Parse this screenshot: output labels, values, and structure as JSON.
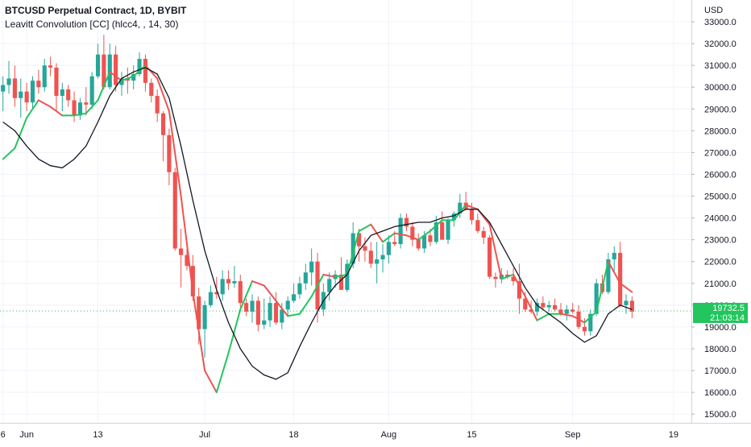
{
  "header": {
    "symbol": "BTCUSD Perpetual Contract, 1D, BYBIT",
    "indicator": "Leavitt Convolution [CC] (hlcc4, , 14, 30)"
  },
  "price_badge": {
    "price": "19732.5",
    "countdown": "21:03:14"
  },
  "colors": {
    "up": "#26a69a",
    "up_bright": "#22c55e",
    "down": "#ef5350",
    "down_dark": "#8b0d3a",
    "slow_line": "#131722",
    "badge": "#22c55e"
  },
  "chart_data": {
    "type": "line",
    "title": "BTCUSD Perpetual Contract, 1D, BYBIT",
    "ylabel": "USD",
    "ylim": [
      14600,
      34000
    ],
    "y_ticks": [
      "33000.0",
      "32000.0",
      "31000.0",
      "30000.0",
      "29000.0",
      "28000.0",
      "27000.0",
      "26000.0",
      "25000.0",
      "24000.0",
      "23000.0",
      "22000.0",
      "21000.0",
      "20000.0",
      "19000.0",
      "18000.0",
      "17000.0",
      "16000.0",
      "15000.0"
    ],
    "x_ticks": [
      "6",
      "Jun",
      "13",
      "Jul",
      "18",
      "Aug",
      "15",
      "Sep",
      "19"
    ],
    "x_tick_days": [
      -1,
      3,
      15,
      33,
      48,
      64,
      78,
      95,
      112
    ],
    "last_price": 19732.5,
    "candles_ohlc": [
      [
        -1,
        29800,
        30500,
        28900,
        30100
      ],
      [
        0,
        30100,
        31200,
        29700,
        30400
      ],
      [
        1,
        30400,
        31000,
        29100,
        29500
      ],
      [
        2,
        29500,
        30400,
        28600,
        29800
      ],
      [
        3,
        29800,
        30200,
        28900,
        29300
      ],
      [
        4,
        29300,
        30500,
        29000,
        30300
      ],
      [
        5,
        30300,
        30800,
        29700,
        30000
      ],
      [
        6,
        30000,
        31300,
        29800,
        31000
      ],
      [
        7,
        31000,
        31400,
        30500,
        30900
      ],
      [
        8,
        30900,
        31100,
        28900,
        29600
      ],
      [
        9,
        29600,
        30200,
        28900,
        29900
      ],
      [
        10,
        29900,
        30100,
        29100,
        29400
      ],
      [
        11,
        29400,
        29800,
        28400,
        28700
      ],
      [
        12,
        28700,
        29500,
        28500,
        29300
      ],
      [
        13,
        29300,
        30000,
        28700,
        29200
      ],
      [
        14,
        29200,
        30700,
        29000,
        30500
      ],
      [
        15,
        30500,
        32000,
        30400,
        31500
      ],
      [
        16,
        31500,
        32400,
        29900,
        30000
      ],
      [
        17,
        30000,
        32000,
        29900,
        31500
      ],
      [
        18,
        31500,
        31900,
        29800,
        30100
      ],
      [
        19,
        30100,
        30700,
        29600,
        30400
      ],
      [
        20,
        30400,
        30900,
        29700,
        30300
      ],
      [
        21,
        30300,
        31000,
        29900,
        30600
      ],
      [
        22,
        30600,
        31600,
        30500,
        31300
      ],
      [
        23,
        31300,
        31500,
        29800,
        30200
      ],
      [
        24,
        30200,
        30400,
        29300,
        29600
      ],
      [
        25,
        29600,
        29900,
        28400,
        28800
      ],
      [
        26,
        28800,
        28900,
        26600,
        27800
      ],
      [
        27,
        27800,
        28100,
        25500,
        26100
      ],
      [
        28,
        26100,
        26300,
        22500,
        22600
      ],
      [
        29,
        22600,
        23500,
        20800,
        22300
      ],
      [
        30,
        22300,
        22900,
        21600,
        21800
      ],
      [
        31,
        21800,
        22300,
        20200,
        20400
      ],
      [
        32,
        20400,
        20800,
        18200,
        18900
      ],
      [
        33,
        18900,
        20200,
        17600,
        20000
      ],
      [
        34,
        20000,
        20900,
        19900,
        20600
      ],
      [
        35,
        20600,
        21300,
        20300,
        20500
      ],
      [
        36,
        20500,
        21600,
        20200,
        21200
      ],
      [
        37,
        21200,
        21600,
        20700,
        21000
      ],
      [
        38,
        21000,
        21800,
        20800,
        21100
      ],
      [
        39,
        21100,
        21400,
        19900,
        20100
      ],
      [
        40,
        20100,
        20300,
        19500,
        19700
      ],
      [
        41,
        19700,
        20500,
        19200,
        20200
      ],
      [
        42,
        20200,
        20400,
        18800,
        19100
      ],
      [
        43,
        19100,
        20300,
        18900,
        19300
      ],
      [
        44,
        19300,
        20400,
        19000,
        20100
      ],
      [
        45,
        20100,
        20600,
        19100,
        19200
      ],
      [
        46,
        19200,
        20100,
        18900,
        19800
      ],
      [
        47,
        19800,
        20400,
        19500,
        20200
      ],
      [
        48,
        20200,
        21000,
        20100,
        20500
      ],
      [
        49,
        20500,
        21300,
        20300,
        21000
      ],
      [
        50,
        21000,
        21900,
        20700,
        21500
      ],
      [
        51,
        21500,
        22600,
        20900,
        22000
      ],
      [
        52,
        22000,
        22400,
        19200,
        19800
      ],
      [
        53,
        19800,
        21000,
        19500,
        20600
      ],
      [
        54,
        20600,
        21500,
        20200,
        21200
      ],
      [
        55,
        21200,
        21600,
        20800,
        21400
      ],
      [
        56,
        21400,
        22200,
        20900,
        20700
      ],
      [
        57,
        20700,
        22100,
        20600,
        21900
      ],
      [
        58,
        21900,
        23800,
        21700,
        23300
      ],
      [
        59,
        23300,
        23500,
        22000,
        22700
      ],
      [
        60,
        22700,
        23100,
        22000,
        22500
      ],
      [
        61,
        22500,
        22900,
        21700,
        21900
      ],
      [
        62,
        21900,
        22900,
        21000,
        22100
      ],
      [
        63,
        22100,
        22800,
        21500,
        22300
      ],
      [
        64,
        22300,
        23200,
        21900,
        22900
      ],
      [
        65,
        22900,
        23400,
        22700,
        22800
      ],
      [
        66,
        22800,
        24200,
        22600,
        24000
      ],
      [
        67,
        24000,
        24200,
        23400,
        23600
      ],
      [
        68,
        23600,
        23800,
        22700,
        23000
      ],
      [
        69,
        23000,
        23300,
        22500,
        22600
      ],
      [
        70,
        22600,
        23400,
        22400,
        23200
      ],
      [
        71,
        23200,
        23500,
        22700,
        22900
      ],
      [
        72,
        22900,
        24100,
        22800,
        23800
      ],
      [
        73,
        23800,
        24300,
        23500,
        23000
      ],
      [
        74,
        23000,
        24000,
        22800,
        23900
      ],
      [
        75,
        23900,
        24300,
        23600,
        24200
      ],
      [
        76,
        24200,
        25100,
        24000,
        24700
      ],
      [
        77,
        24700,
        25200,
        24400,
        24400
      ],
      [
        78,
        24400,
        24700,
        23700,
        23900
      ],
      [
        79,
        23900,
        24200,
        23300,
        23400
      ],
      [
        80,
        23400,
        23600,
        22800,
        23100
      ],
      [
        81,
        23100,
        23200,
        21200,
        21300
      ],
      [
        82,
        21300,
        21500,
        20800,
        21200
      ],
      [
        83,
        21200,
        21700,
        21000,
        21400
      ],
      [
        84,
        21400,
        21600,
        21200,
        21300
      ],
      [
        85,
        21300,
        21700,
        20900,
        21100
      ],
      [
        86,
        21100,
        21900,
        19600,
        20300
      ],
      [
        87,
        20300,
        20600,
        19700,
        19800
      ],
      [
        88,
        19800,
        20200,
        19600,
        19700
      ],
      [
        89,
        19700,
        20300,
        19500,
        20100
      ],
      [
        90,
        20100,
        20400,
        19800,
        19900
      ],
      [
        91,
        19900,
        20200,
        19700,
        20000
      ],
      [
        92,
        20000,
        20300,
        19700,
        19800
      ],
      [
        93,
        19800,
        20100,
        19500,
        19600
      ],
      [
        94,
        19600,
        20000,
        19300,
        19800
      ],
      [
        95,
        19800,
        20100,
        19600,
        19700
      ],
      [
        96,
        19700,
        20000,
        18900,
        19000
      ],
      [
        97,
        19000,
        19400,
        18600,
        18800
      ],
      [
        98,
        18800,
        19800,
        18600,
        19600
      ],
      [
        99,
        19600,
        21200,
        19500,
        21000
      ],
      [
        100,
        21000,
        21400,
        20500,
        20600
      ],
      [
        101,
        20600,
        22400,
        20500,
        22100
      ],
      [
        102,
        22100,
        22700,
        21500,
        22400
      ],
      [
        103,
        22400,
        22900,
        19900,
        20000
      ],
      [
        104,
        20000,
        20500,
        19600,
        20200
      ],
      [
        105,
        20200,
        20400,
        19400,
        19700
      ]
    ],
    "series": [
      {
        "name": "",
        "color_up": "#22c55e",
        "color_down": "#ef5350",
        "color_extreme": "#8b0d3a",
        "points": [
          [
            -1,
            26700
          ],
          [
            1,
            27200
          ],
          [
            3,
            28600
          ],
          [
            5,
            29400
          ],
          [
            7,
            29100
          ],
          [
            9,
            28700
          ],
          [
            11,
            28700
          ],
          [
            13,
            28800
          ],
          [
            15,
            29400
          ],
          [
            17,
            30700
          ],
          [
            19,
            30300
          ],
          [
            21,
            30500
          ],
          [
            23,
            31000
          ],
          [
            25,
            30400
          ],
          [
            27,
            28900
          ],
          [
            29,
            25000
          ],
          [
            31,
            20600
          ],
          [
            33,
            17000
          ],
          [
            35,
            16000
          ],
          [
            37,
            17800
          ],
          [
            39,
            19800
          ],
          [
            41,
            21100
          ],
          [
            43,
            20900
          ],
          [
            45,
            20200
          ],
          [
            47,
            19500
          ],
          [
            49,
            19600
          ],
          [
            51,
            20400
          ],
          [
            53,
            21400
          ],
          [
            55,
            21300
          ],
          [
            57,
            21400
          ],
          [
            59,
            23400
          ],
          [
            61,
            23700
          ],
          [
            63,
            22900
          ],
          [
            65,
            23300
          ],
          [
            67,
            23200
          ],
          [
            69,
            23000
          ],
          [
            71,
            23400
          ],
          [
            73,
            23900
          ],
          [
            75,
            23900
          ],
          [
            77,
            24600
          ],
          [
            79,
            24400
          ],
          [
            81,
            23700
          ],
          [
            83,
            21200
          ],
          [
            85,
            21400
          ],
          [
            87,
            20400
          ],
          [
            89,
            19300
          ],
          [
            91,
            19600
          ],
          [
            93,
            19600
          ],
          [
            95,
            19500
          ],
          [
            97,
            19200
          ],
          [
            99,
            19700
          ],
          [
            101,
            22000
          ],
          [
            103,
            21000
          ],
          [
            105,
            20600
          ]
        ]
      },
      {
        "name": "",
        "color": "#131722",
        "points": [
          [
            -1,
            28400
          ],
          [
            1,
            28000
          ],
          [
            3,
            27300
          ],
          [
            5,
            26700
          ],
          [
            7,
            26400
          ],
          [
            9,
            26300
          ],
          [
            11,
            26700
          ],
          [
            13,
            27300
          ],
          [
            15,
            28400
          ],
          [
            17,
            29600
          ],
          [
            19,
            30400
          ],
          [
            21,
            30700
          ],
          [
            23,
            30900
          ],
          [
            25,
            30600
          ],
          [
            27,
            29500
          ],
          [
            29,
            27300
          ],
          [
            31,
            24800
          ],
          [
            33,
            22500
          ],
          [
            35,
            20700
          ],
          [
            37,
            19200
          ],
          [
            39,
            18000
          ],
          [
            41,
            17200
          ],
          [
            43,
            16800
          ],
          [
            45,
            16600
          ],
          [
            47,
            16900
          ],
          [
            49,
            18100
          ],
          [
            51,
            19200
          ],
          [
            53,
            20200
          ],
          [
            55,
            20900
          ],
          [
            57,
            21400
          ],
          [
            59,
            22500
          ],
          [
            61,
            23200
          ],
          [
            63,
            23400
          ],
          [
            65,
            23600
          ],
          [
            67,
            23700
          ],
          [
            69,
            23800
          ],
          [
            71,
            23800
          ],
          [
            73,
            24000
          ],
          [
            75,
            24100
          ],
          [
            77,
            24400
          ],
          [
            79,
            24400
          ],
          [
            81,
            23800
          ],
          [
            83,
            22800
          ],
          [
            85,
            21800
          ],
          [
            87,
            20800
          ],
          [
            89,
            20000
          ],
          [
            91,
            19600
          ],
          [
            93,
            19200
          ],
          [
            95,
            18700
          ],
          [
            97,
            18300
          ],
          [
            99,
            18600
          ],
          [
            101,
            19600
          ],
          [
            103,
            20000
          ],
          [
            105,
            19800
          ]
        ]
      }
    ]
  }
}
